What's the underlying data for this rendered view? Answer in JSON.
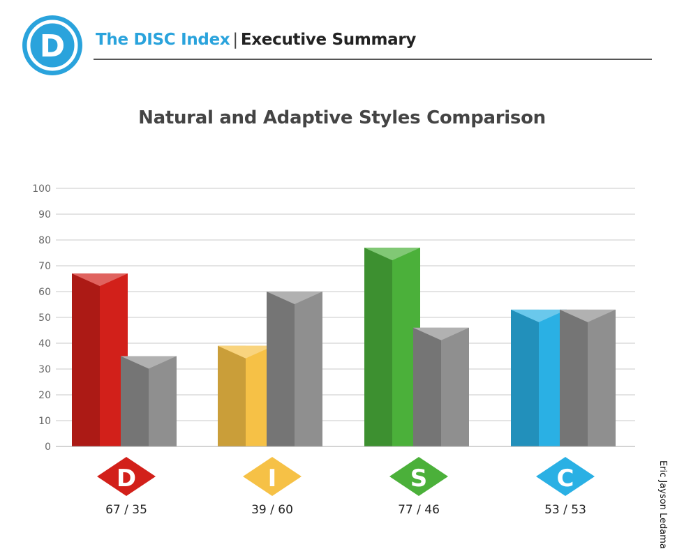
{
  "header": {
    "logo_letter": "D",
    "brand": "The DISC Index",
    "separator": "|",
    "section": "Executive Summary"
  },
  "watermark": "Eric Jayson Ledama",
  "colors": {
    "brand": "#2aa3dc",
    "D": "#d2201a",
    "I": "#f6c146",
    "S": "#4bb03a",
    "C": "#2ab0e4",
    "adaptive": "#8f8f8f"
  },
  "chart_data": {
    "type": "bar",
    "title": "Natural and Adaptive Styles Comparison",
    "categories": [
      "D",
      "I",
      "S",
      "C"
    ],
    "series": [
      {
        "values": [
          67,
          39,
          77,
          53
        ]
      },
      {
        "values": [
          35,
          60,
          46,
          53
        ]
      }
    ],
    "data_labels": [
      "67 / 35",
      "39 / 60",
      "77 / 46",
      "53 / 53"
    ],
    "ylim": [
      0,
      100
    ],
    "yticks": [
      0,
      10,
      20,
      30,
      40,
      50,
      60,
      70,
      80,
      90,
      100
    ],
    "grid": true,
    "xlabel": "",
    "ylabel": ""
  }
}
